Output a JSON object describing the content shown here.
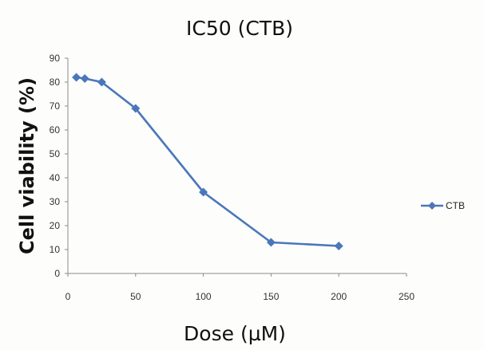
{
  "chart_data": {
    "type": "line",
    "title": "IC50 (CTB)",
    "xlabel": "Dose (µM)",
    "ylabel": "Cell viability (%)",
    "xlim": [
      0,
      250
    ],
    "ylim": [
      0,
      90
    ],
    "xticks": [
      0,
      50,
      100,
      150,
      200,
      250
    ],
    "yticks": [
      0,
      10,
      20,
      30,
      40,
      50,
      60,
      70,
      80,
      90
    ],
    "grid": false,
    "legend_position": "right",
    "series": [
      {
        "name": "CTB",
        "color": "#4a77bb",
        "marker": "diamond",
        "x": [
          6.25,
          12.5,
          25,
          50,
          100,
          150,
          200
        ],
        "y": [
          82,
          81.5,
          80,
          69,
          34,
          13,
          11.5
        ]
      }
    ]
  }
}
